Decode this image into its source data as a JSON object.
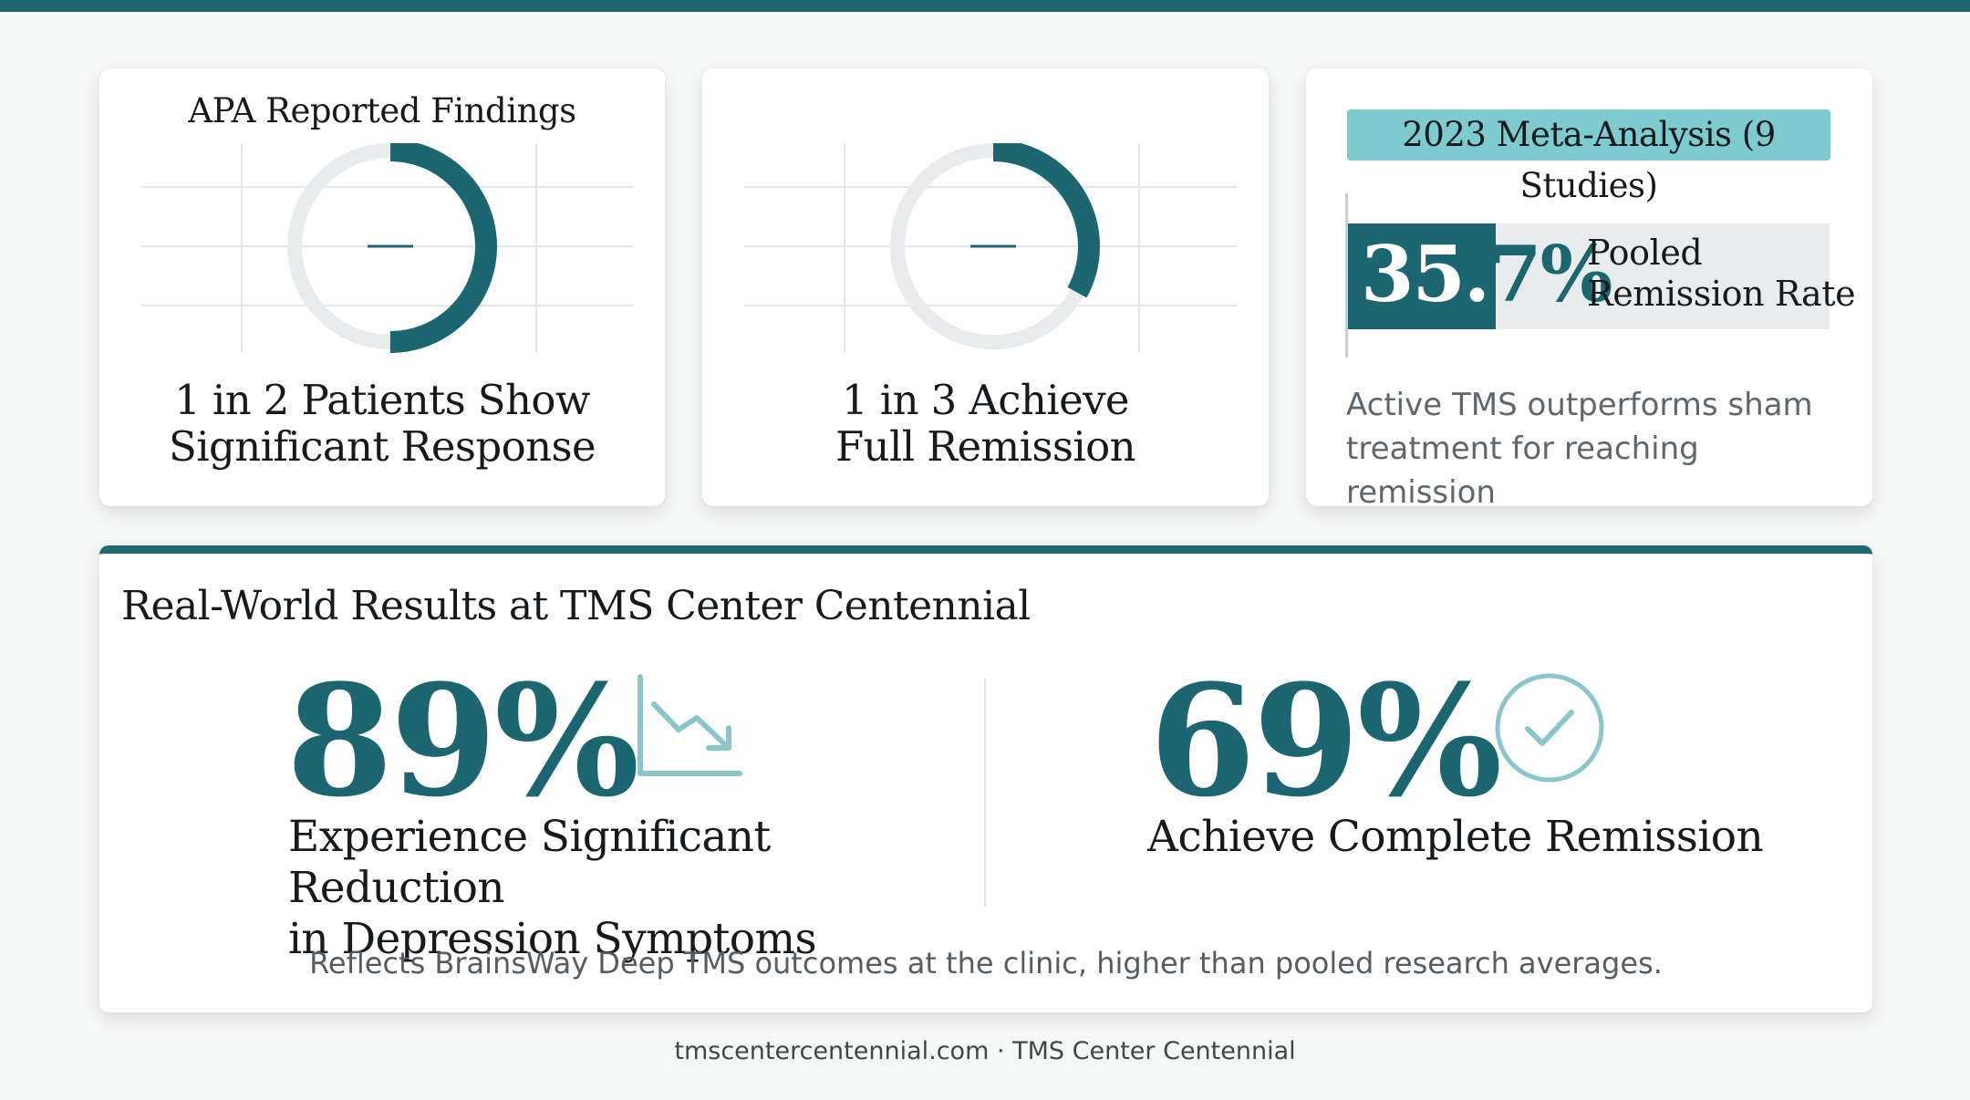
{
  "colors": {
    "primary": "#1b6670",
    "accent": "#7ecbcf",
    "track": "#e8eced",
    "top_bar": "#1f6772"
  },
  "apa_card": {
    "title": "APA Reported Findings",
    "ring_fill_fraction": 0.5,
    "caption_line1": "1 in 2 Patients Show",
    "caption_line2": "Significant Response"
  },
  "remission_card": {
    "ring_fill_fraction": 0.33,
    "caption_line1": "1 in 3 Achieve",
    "caption_line2": "Full Remission"
  },
  "meta_card": {
    "badge": "2023 Meta-Analysis (9 Studies)",
    "rate_value": 35.7,
    "rate_part1": "35.",
    "rate_part2": "7%",
    "rate_label_line1": "Pooled",
    "rate_label_line2": "Remission Rate",
    "note": "Active TMS outperforms sham treatment for reaching remission"
  },
  "results": {
    "title": "Real-World Results at TMS Center Centennial",
    "left_value": "89%",
    "left_caption_line1": "Experience Significant Reduction",
    "left_caption_line2": "in Depression Symptoms",
    "left_icon": "trend-down-icon",
    "right_value": "69%",
    "right_caption": "Achieve Complete Remission",
    "right_icon": "check-circle-icon",
    "note": "Reflects BrainsWay Deep TMS outcomes at the clinic, higher than pooled research averages."
  },
  "footer": "tmscentercentennial.com · TMS Center Centennial"
}
